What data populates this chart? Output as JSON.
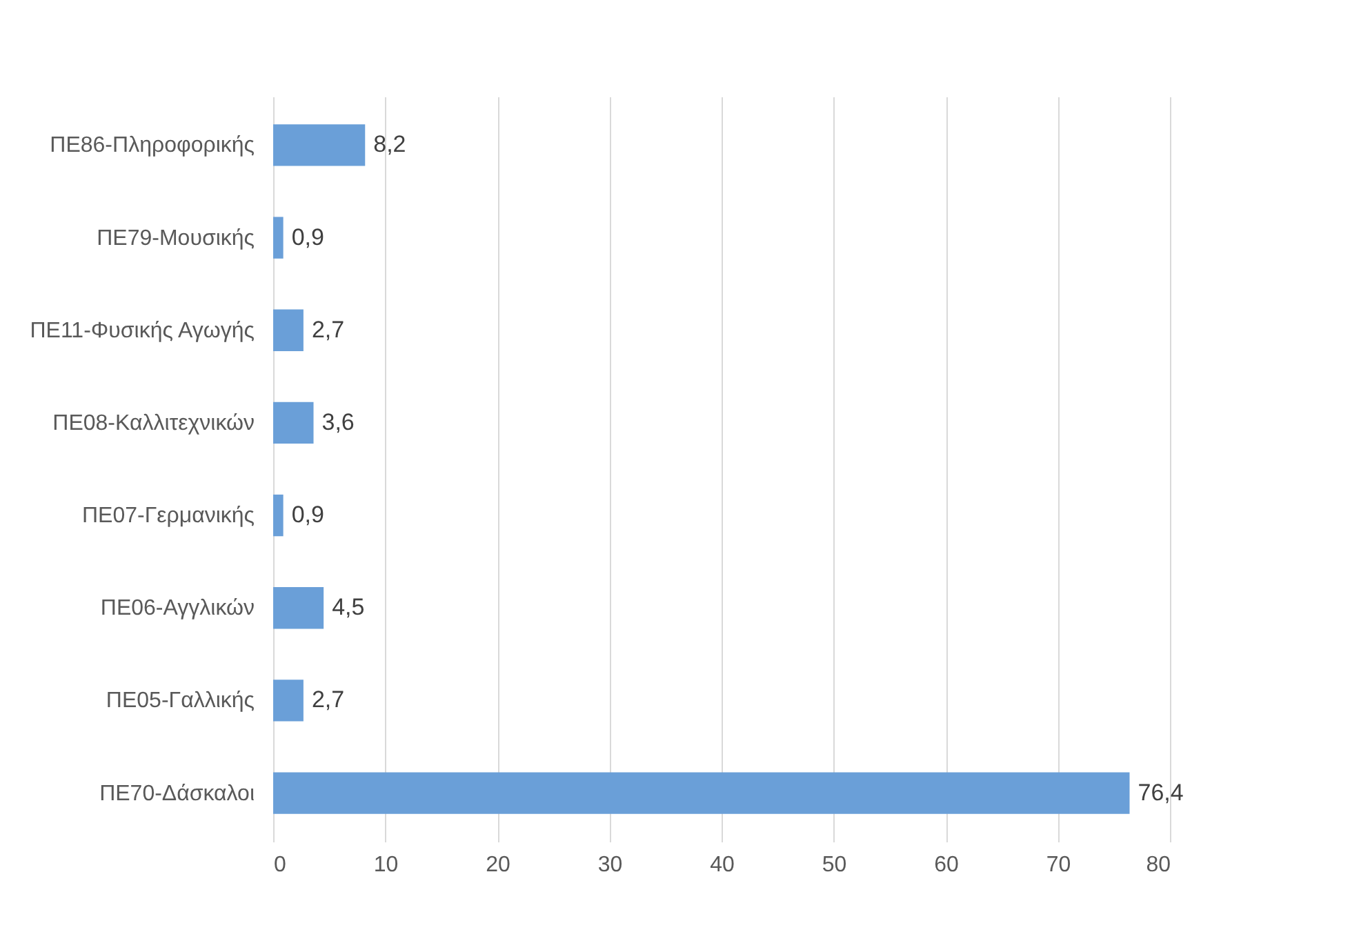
{
  "chart_data": {
    "type": "bar",
    "orientation": "horizontal",
    "categories": [
      "ΠΕ86-Πληροφορικής",
      "ΠΕ79-Μουσικής",
      "ΠΕ11-Φυσικής Αγωγής",
      "ΠΕ08-Καλλιτεχνικών",
      "ΠΕ07-Γερμανικής",
      "ΠΕ06-Αγγλικών",
      "ΠΕ05-Γαλλικής",
      "ΠΕ70-Δάσκαλοι"
    ],
    "values": [
      8.2,
      0.9,
      2.7,
      3.6,
      0.9,
      4.5,
      2.7,
      76.4
    ],
    "value_labels": [
      "8,2",
      "0,9",
      "2,7",
      "3,6",
      "0,9",
      "4,5",
      "2,7",
      "76,4"
    ],
    "color": "#6a9fd8",
    "xlim": [
      0,
      80
    ],
    "xticks": [
      0,
      10,
      20,
      30,
      40,
      50,
      60,
      70,
      80
    ],
    "grid": "x"
  }
}
